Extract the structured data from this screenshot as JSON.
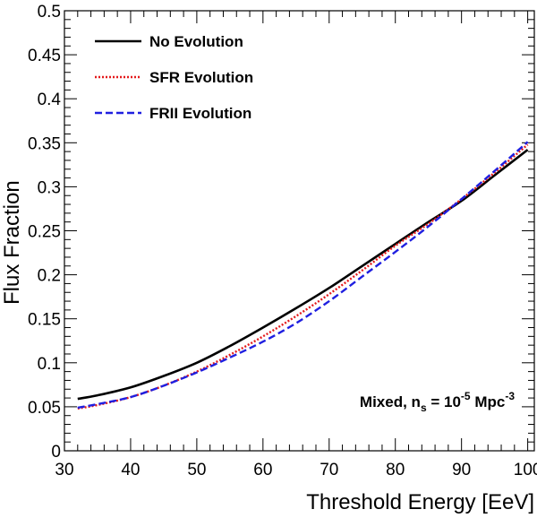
{
  "chart_data": {
    "type": "line",
    "title": "",
    "xlabel": "Threshold Energy [EeV]",
    "ylabel": "Flux Fraction",
    "xlim": [
      30,
      101
    ],
    "ylim": [
      0,
      0.5
    ],
    "x_ticks": [
      "30",
      "40",
      "50",
      "60",
      "70",
      "80",
      "90",
      "100"
    ],
    "y_ticks": [
      "0",
      "0.05",
      "0.1",
      "0.15",
      "0.2",
      "0.25",
      "0.3",
      "0.35",
      "0.4",
      "0.45",
      "0.5"
    ],
    "grid": false,
    "legend_position": "top-left",
    "series": [
      {
        "name": "No Evolution",
        "color": "#000000",
        "style": "solid",
        "x": [
          32,
          35,
          40,
          45,
          50,
          55,
          60,
          65,
          70,
          75,
          80,
          85,
          90,
          95,
          100
        ],
        "y": [
          0.059,
          0.063,
          0.072,
          0.085,
          0.1,
          0.119,
          0.14,
          0.162,
          0.185,
          0.21,
          0.235,
          0.26,
          0.284,
          0.313,
          0.342
        ]
      },
      {
        "name": "SFR Evolution",
        "color": "#e41a1c",
        "style": "dotted",
        "x": [
          32,
          35,
          40,
          45,
          50,
          55,
          60,
          65,
          70,
          75,
          80,
          85,
          90,
          95,
          100
        ],
        "y": [
          0.048,
          0.052,
          0.061,
          0.074,
          0.09,
          0.109,
          0.13,
          0.153,
          0.178,
          0.205,
          0.233,
          0.258,
          0.286,
          0.316,
          0.348
        ]
      },
      {
        "name": "FRII Evolution",
        "color": "#1f1fe0",
        "style": "dashed",
        "x": [
          32,
          35,
          40,
          45,
          50,
          55,
          60,
          65,
          70,
          75,
          80,
          85,
          90,
          95,
          100
        ],
        "y": [
          0.049,
          0.053,
          0.061,
          0.074,
          0.089,
          0.106,
          0.124,
          0.145,
          0.17,
          0.198,
          0.226,
          0.255,
          0.286,
          0.318,
          0.351
        ]
      }
    ],
    "annotation": {
      "text_main": "Mixed, n",
      "sub": "s",
      "text_mid": " = 10",
      "sup": "-5",
      "text_unit": " Mpc",
      "sup2": "-3"
    }
  }
}
